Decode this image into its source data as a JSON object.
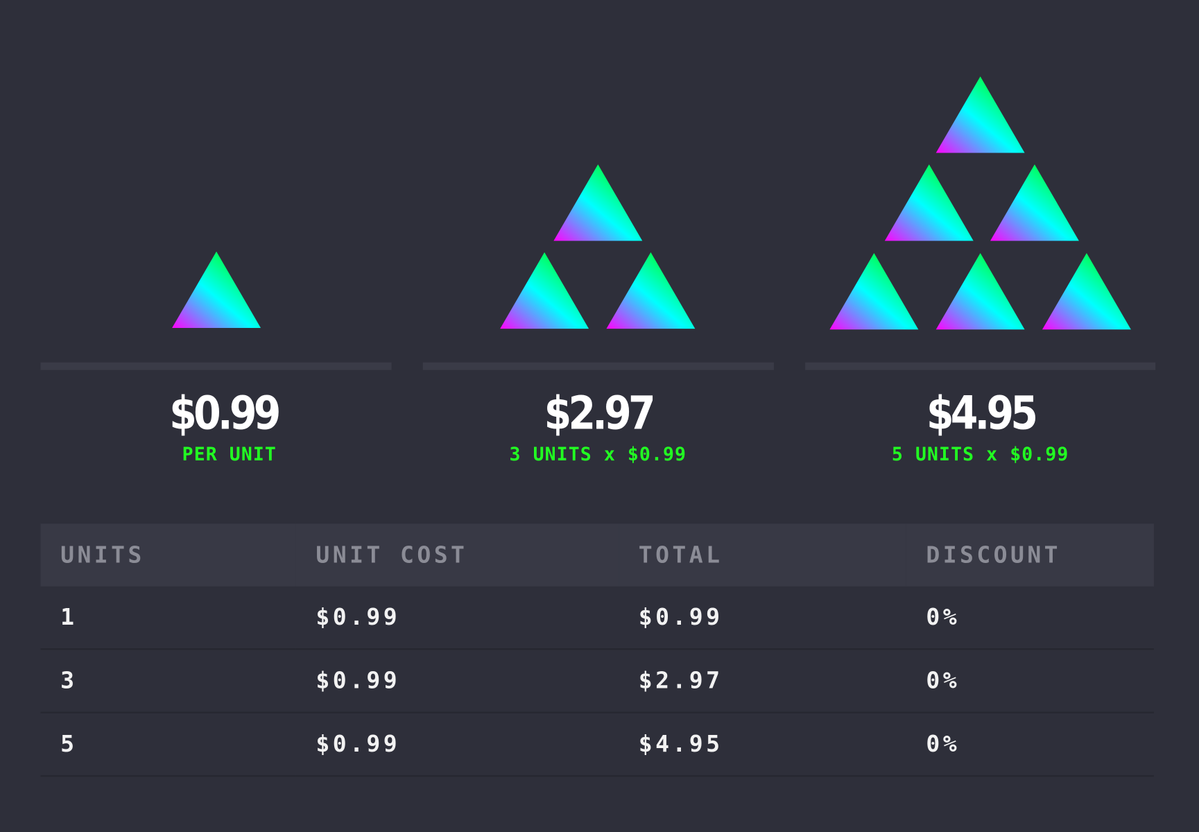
{
  "colors": {
    "background": "#2e2f3a",
    "accent_green": "#22ff22",
    "triangle_gradient": [
      "#ff00ff",
      "#00ffff",
      "#00ff00"
    ]
  },
  "tiers": [
    {
      "units": 1,
      "price": "$0.99",
      "note": "PER UNIT"
    },
    {
      "units": 3,
      "price": "$2.97",
      "note": "3 UNITS x $0.99"
    },
    {
      "units": 5,
      "price": "$4.95",
      "note": "5 UNITS x $0.99"
    }
  ],
  "table": {
    "headers": [
      "UNITS",
      "UNIT COST",
      "TOTAL",
      "DISCOUNT"
    ],
    "rows": [
      [
        "1",
        "$0.99",
        "$0.99",
        "0%"
      ],
      [
        "3",
        "$0.99",
        "$2.97",
        "0%"
      ],
      [
        "5",
        "$0.99",
        "$4.95",
        "0%"
      ]
    ]
  }
}
